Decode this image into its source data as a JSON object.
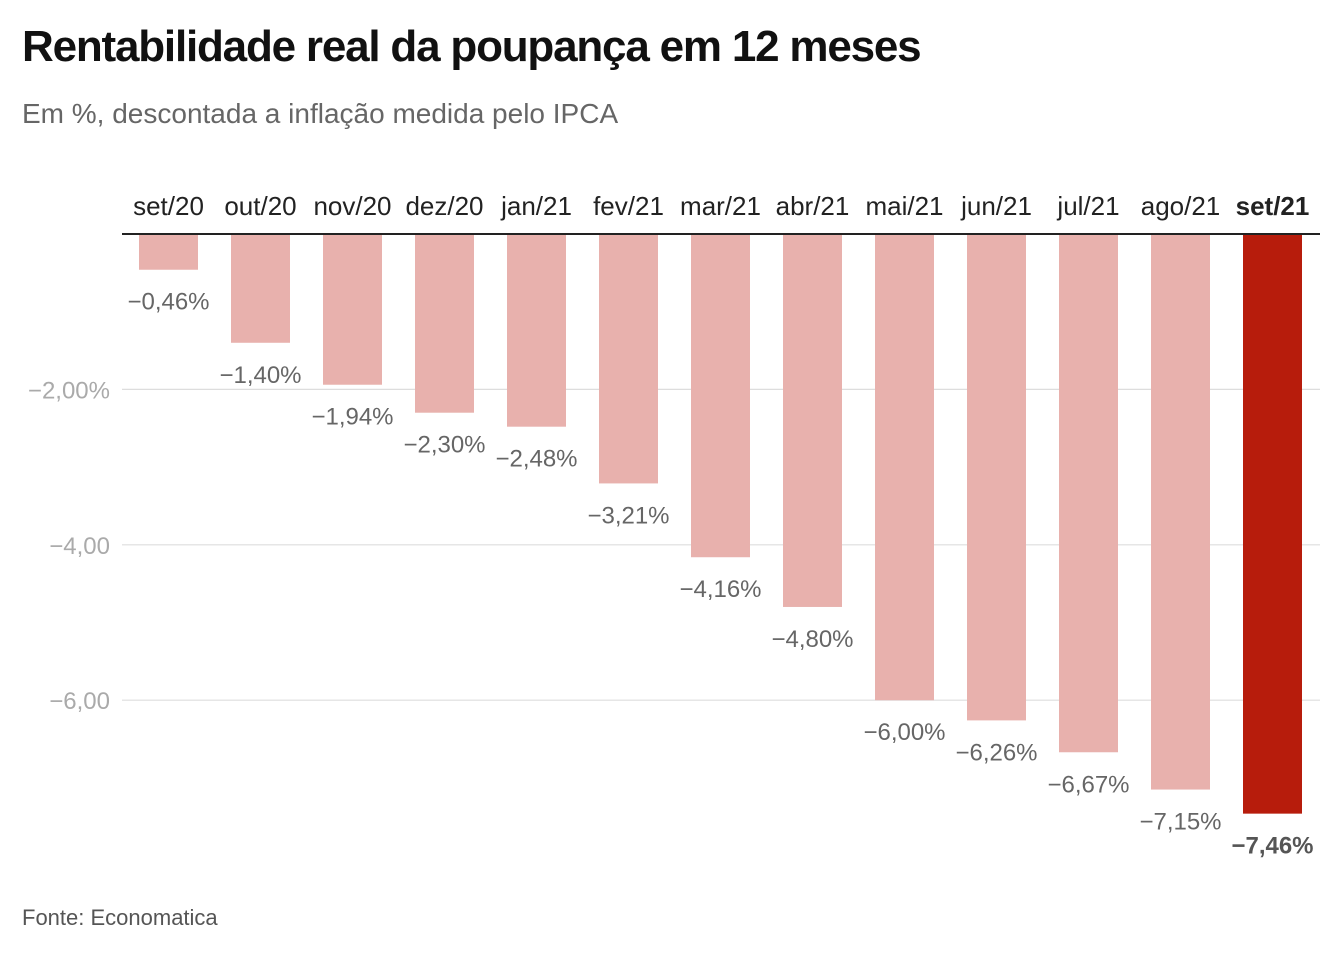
{
  "header": {
    "title": "Rentabilidade real da poupança em 12 meses",
    "subtitle": "Em %, descontada a inflação medida pelo IPCA"
  },
  "footer": {
    "source": "Fonte: Economatica"
  },
  "colors": {
    "bar": "#e8b1ad",
    "highlight_bar": "#b71c0c",
    "label": "#666666",
    "highlight_label": "#555555",
    "axis_label": "#aaaaaa",
    "grid": "#dddddd",
    "baseline": "#222222"
  },
  "chart_data": {
    "type": "bar",
    "categories": [
      "set/20",
      "out/20",
      "nov/20",
      "dez/20",
      "jan/21",
      "fev/21",
      "mar/21",
      "abr/21",
      "mai/21",
      "jun/21",
      "jul/21",
      "ago/21",
      "set/21"
    ],
    "values": [
      -0.46,
      -1.4,
      -1.94,
      -2.3,
      -2.48,
      -3.21,
      -4.16,
      -4.8,
      -6.0,
      -6.26,
      -6.67,
      -7.15,
      -7.46
    ],
    "value_labels": [
      "−0,46%",
      "−1,40%",
      "−1,94%",
      "−2,30%",
      "−2,48%",
      "−3,21%",
      "−4,16%",
      "−4,80%",
      "−6,00%",
      "−6,26%",
      "−6,67%",
      "−7,15%",
      "−7,46%"
    ],
    "highlight_index": 12,
    "ylim": [
      -7.46,
      0
    ],
    "yticks": [
      {
        "value": -2,
        "label": "−2,00%"
      },
      {
        "value": -4,
        "label": "−4,00"
      },
      {
        "value": -6,
        "label": "−6,00"
      }
    ],
    "grid": true,
    "category_axis_position": "top"
  }
}
